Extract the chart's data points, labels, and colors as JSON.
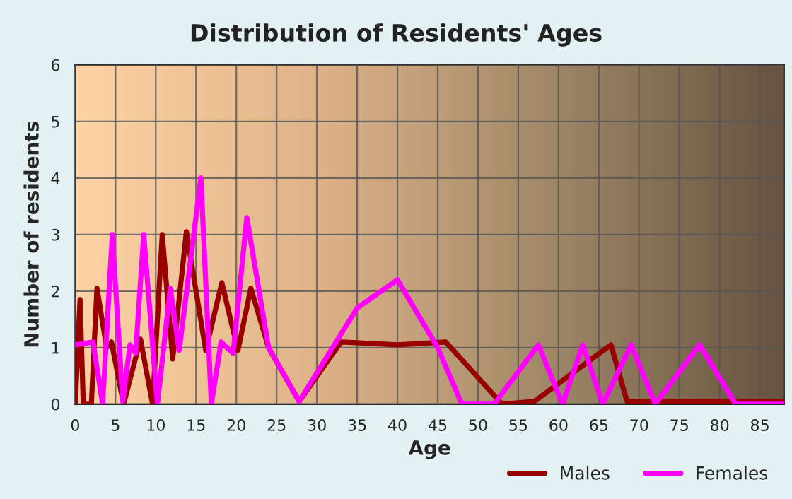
{
  "chart_data": {
    "type": "line",
    "title": "Distribution of Residents' Ages",
    "xlabel": "Age",
    "ylabel": "Number of residents",
    "xlim": [
      0,
      88
    ],
    "xticks": [
      0,
      5,
      10,
      15,
      20,
      25,
      30,
      35,
      40,
      45,
      50,
      55,
      60,
      65,
      70,
      75,
      80,
      85
    ],
    "ylim": [
      0,
      6
    ],
    "yticks": [
      0,
      1,
      2,
      3,
      4,
      5,
      6
    ],
    "grid": true,
    "legend": "bottom right",
    "marker": "none",
    "line_style": "solid",
    "series": [
      {
        "name": "Males",
        "color": "#990000",
        "x": [
          0,
          0.6,
          1,
          2,
          2.7,
          3.9,
          4.5,
          6,
          8.1,
          9.6,
          10.8,
          12.1,
          13.8,
          16.2,
          18.2,
          20.2,
          21.8,
          24,
          27.8,
          33,
          40,
          46,
          53,
          57,
          66.5,
          68.5,
          88
        ],
        "values": [
          0,
          1.85,
          0,
          0,
          2.05,
          1,
          1.1,
          0,
          1.15,
          0,
          3,
          0.8,
          3.05,
          0.95,
          2.15,
          0.95,
          2.05,
          1,
          0.05,
          1.1,
          1.05,
          1.1,
          0,
          0.05,
          1.05,
          0.05,
          0.05
        ]
      },
      {
        "name": "Females",
        "color": "#ff00ff",
        "x": [
          0,
          2.2,
          3.4,
          4.6,
          5.9,
          6.8,
          7.5,
          8.5,
          10.2,
          11.8,
          12.9,
          15.6,
          16.9,
          18.1,
          19.6,
          21.3,
          24,
          27.8,
          35,
          40,
          45,
          48,
          52,
          57.5,
          60.5,
          63,
          65.5,
          69,
          72,
          77.5,
          82,
          88
        ],
        "values": [
          1.05,
          1.1,
          0,
          3,
          0.05,
          1.05,
          0.9,
          3,
          0,
          2.05,
          0.95,
          4,
          0,
          1.1,
          0.9,
          3.3,
          1,
          0.05,
          1.7,
          2.2,
          1,
          0,
          0,
          1.05,
          0,
          1.05,
          0,
          1.05,
          0,
          1.05,
          0,
          0
        ]
      }
    ]
  }
}
